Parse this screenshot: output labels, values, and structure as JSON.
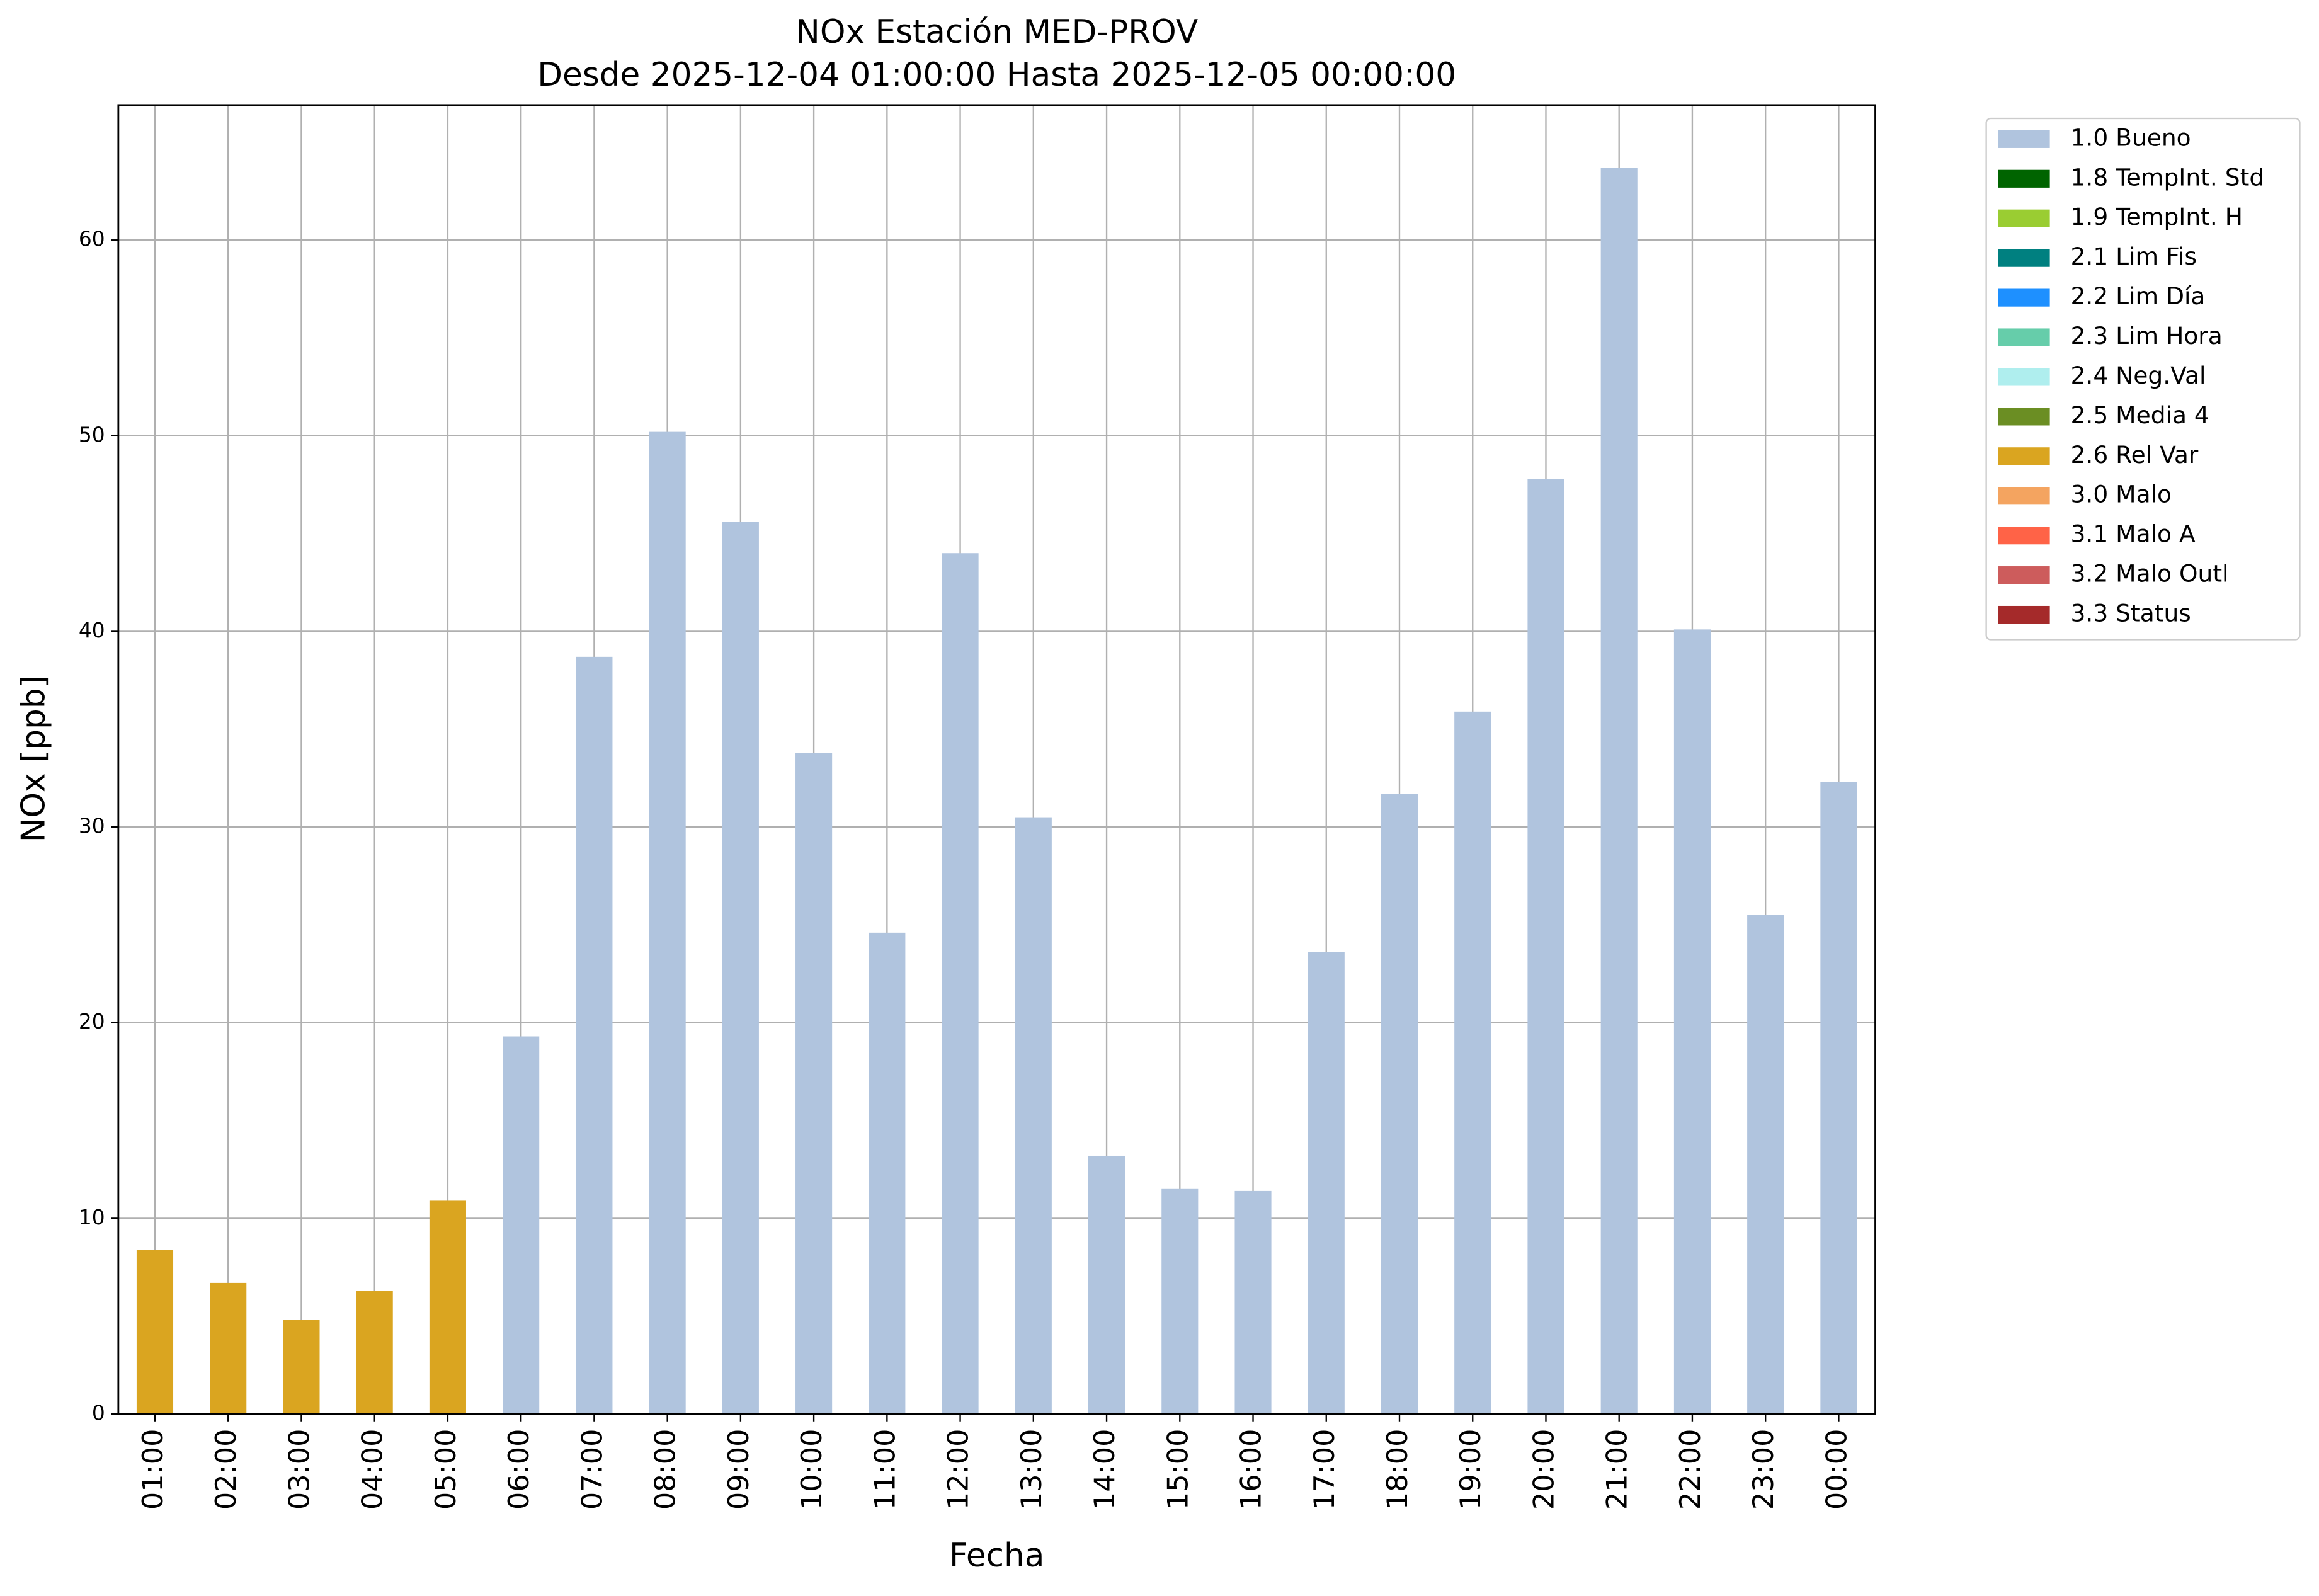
{
  "chart_data": {
    "type": "bar",
    "title": "NOx Estación MED-PROV",
    "subtitle": "Desde 2025-12-04 01:00:00 Hasta 2025-12-05 00:00:00",
    "x_label": "Fecha",
    "y_label": "NOx [ppb]",
    "categories": [
      "01:00",
      "02:00",
      "03:00",
      "04:00",
      "05:00",
      "06:00",
      "07:00",
      "08:00",
      "09:00",
      "10:00",
      "11:00",
      "12:00",
      "13:00",
      "14:00",
      "15:00",
      "16:00",
      "17:00",
      "18:00",
      "19:00",
      "20:00",
      "21:00",
      "22:00",
      "23:00",
      "00:00"
    ],
    "series": [
      {
        "name": "1.0 Bueno",
        "color": "#b0c4de",
        "values": [
          null,
          null,
          null,
          null,
          null,
          19.3,
          38.7,
          50.2,
          45.6,
          33.8,
          24.6,
          44.0,
          30.5,
          13.2,
          11.5,
          11.4,
          23.6,
          31.7,
          35.9,
          47.8,
          63.7,
          40.1,
          25.5,
          32.3
        ]
      },
      {
        "name": "1.8 TempInt. Std",
        "color": "#006400",
        "values": [
          null,
          null,
          null,
          null,
          null,
          null,
          null,
          null,
          null,
          null,
          null,
          null,
          null,
          null,
          null,
          null,
          null,
          null,
          null,
          null,
          null,
          null,
          null,
          null
        ]
      },
      {
        "name": "1.9 TempInt. H",
        "color": "#9acd32",
        "values": [
          null,
          null,
          null,
          null,
          null,
          null,
          null,
          null,
          null,
          null,
          null,
          null,
          null,
          null,
          null,
          null,
          null,
          null,
          null,
          null,
          null,
          null,
          null,
          null
        ]
      },
      {
        "name": "2.1 Lim Fis",
        "color": "#008080",
        "values": [
          null,
          null,
          null,
          null,
          null,
          null,
          null,
          null,
          null,
          null,
          null,
          null,
          null,
          null,
          null,
          null,
          null,
          null,
          null,
          null,
          null,
          null,
          null,
          null
        ]
      },
      {
        "name": "2.2 Lim Día",
        "color": "#1e90ff",
        "values": [
          null,
          null,
          null,
          null,
          null,
          null,
          null,
          null,
          null,
          null,
          null,
          null,
          null,
          null,
          null,
          null,
          null,
          null,
          null,
          null,
          null,
          null,
          null,
          null
        ]
      },
      {
        "name": "2.3 Lim Hora",
        "color": "#66cdaa",
        "values": [
          null,
          null,
          null,
          null,
          null,
          null,
          null,
          null,
          null,
          null,
          null,
          null,
          null,
          null,
          null,
          null,
          null,
          null,
          null,
          null,
          null,
          null,
          null,
          null
        ]
      },
      {
        "name": "2.4 Neg.Val",
        "color": "#afeeee",
        "values": [
          null,
          null,
          null,
          null,
          null,
          null,
          null,
          null,
          null,
          null,
          null,
          null,
          null,
          null,
          null,
          null,
          null,
          null,
          null,
          null,
          null,
          null,
          null,
          null
        ]
      },
      {
        "name": "2.5 Media 4",
        "color": "#6b8e23",
        "values": [
          null,
          null,
          null,
          null,
          null,
          null,
          null,
          null,
          null,
          null,
          null,
          null,
          null,
          null,
          null,
          null,
          null,
          null,
          null,
          null,
          null,
          null,
          null,
          null
        ]
      },
      {
        "name": "2.6 Rel Var",
        "color": "#daa520",
        "values": [
          8.4,
          6.7,
          4.8,
          6.3,
          10.9,
          null,
          null,
          null,
          null,
          null,
          null,
          null,
          null,
          null,
          null,
          null,
          null,
          null,
          null,
          null,
          null,
          null,
          null,
          null
        ]
      },
      {
        "name": "3.0 Malo",
        "color": "#f4a460",
        "values": [
          null,
          null,
          null,
          null,
          null,
          null,
          null,
          null,
          null,
          null,
          null,
          null,
          null,
          null,
          null,
          null,
          null,
          null,
          null,
          null,
          null,
          null,
          null,
          null
        ]
      },
      {
        "name": "3.1 Malo A",
        "color": "#ff6347",
        "values": [
          null,
          null,
          null,
          null,
          null,
          null,
          null,
          null,
          null,
          null,
          null,
          null,
          null,
          null,
          null,
          null,
          null,
          null,
          null,
          null,
          null,
          null,
          null,
          null
        ]
      },
      {
        "name": "3.2 Malo Outl",
        "color": "#cd5c5c",
        "values": [
          null,
          null,
          null,
          null,
          null,
          null,
          null,
          null,
          null,
          null,
          null,
          null,
          null,
          null,
          null,
          null,
          null,
          null,
          null,
          null,
          null,
          null,
          null,
          null
        ]
      },
      {
        "name": "3.3 Status",
        "color": "#a52a2a",
        "values": [
          null,
          null,
          null,
          null,
          null,
          null,
          null,
          null,
          null,
          null,
          null,
          null,
          null,
          null,
          null,
          null,
          null,
          null,
          null,
          null,
          null,
          null,
          null,
          null
        ]
      }
    ],
    "ylim": [
      0,
      66.9
    ],
    "yticks": [
      0,
      10,
      20,
      30,
      40,
      50,
      60
    ],
    "grid": true,
    "legend": "outside upper right"
  }
}
